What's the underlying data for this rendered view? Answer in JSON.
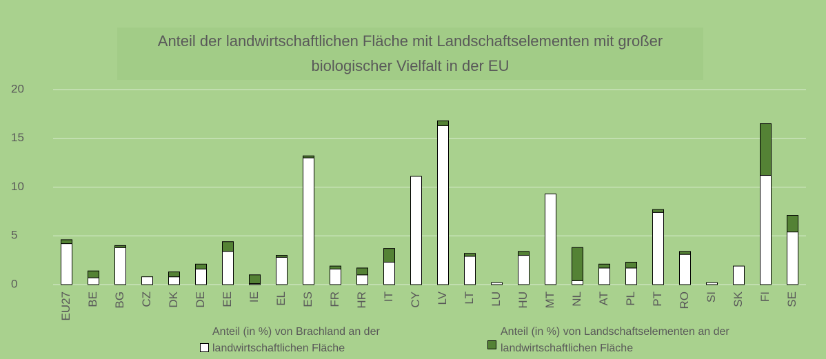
{
  "chart_data": {
    "type": "bar",
    "stacked": true,
    "title": "Anteil der landwirtschaftlichen Fläche mit Landschaftselementen mit großer biologischer Vielfalt in der EU",
    "categories": [
      "EU27",
      "BE",
      "BG",
      "CZ",
      "DK",
      "DE",
      "EE",
      "IE",
      "EL",
      "ES",
      "FR",
      "HR",
      "IT",
      "CY",
      "LV",
      "LT",
      "LU",
      "HU",
      "MT",
      "NL",
      "AT",
      "PL",
      "PT",
      "RO",
      "SI",
      "SK",
      "FI",
      "SE"
    ],
    "series": [
      {
        "name": "Anteil (in %) von Brachland an der landwirtschaftlichen Fläche",
        "color": "#ffffff",
        "values": [
          4.2,
          0.7,
          3.8,
          0.8,
          0.8,
          1.6,
          3.4,
          0.1,
          2.8,
          13.0,
          1.6,
          1.0,
          2.3,
          11.1,
          16.3,
          2.9,
          0.2,
          3.0,
          9.3,
          0.4,
          1.7,
          1.7,
          7.4,
          3.1,
          0.2,
          1.9,
          11.2,
          5.4
        ]
      },
      {
        "name": "Anteil (in %) von Landschaftselementen an der landwirtschaftlichen Fläche",
        "color": "#548235",
        "values": [
          0.4,
          0.7,
          0.2,
          0,
          0.5,
          0.5,
          1.0,
          0.9,
          0.2,
          0.2,
          0.3,
          0.7,
          1.4,
          0,
          0.5,
          0.3,
          0,
          0.4,
          0,
          3.4,
          0.4,
          0.6,
          0.3,
          0.3,
          0,
          0,
          5.3,
          1.7
        ]
      }
    ],
    "ylim": [
      0,
      20
    ],
    "yticks": [
      0,
      5,
      10,
      15,
      20
    ],
    "grid": true
  }
}
